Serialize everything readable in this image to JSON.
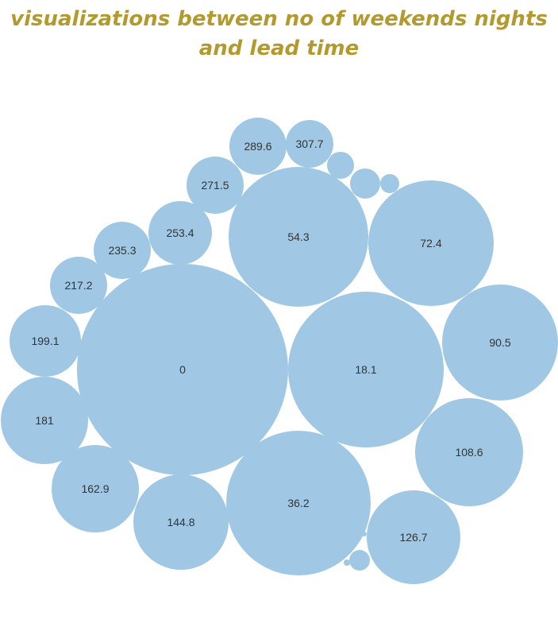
{
  "chart_data": {
    "type": "bubble",
    "title_lines": [
      "visualizations between no of weekends  nights",
      "and lead time"
    ],
    "bubble_color": "#a0c8e4",
    "title_color": "#b39a2e",
    "labeled_bins": [
      "0",
      "18.1",
      "36.2",
      "54.3",
      "72.4",
      "90.5",
      "108.6",
      "126.7",
      "144.8",
      "162.9",
      "181",
      "199.1",
      "217.2",
      "235.3",
      "253.4",
      "271.5",
      "289.6",
      "307.7"
    ],
    "unlabeled_bubble_count": 6
  }
}
